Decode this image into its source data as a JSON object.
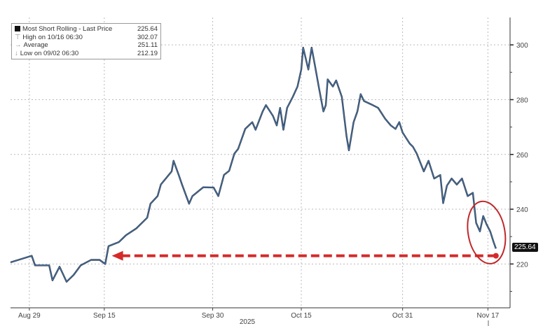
{
  "chart_data": {
    "type": "line",
    "title": "",
    "series": [
      {
        "name": "Most Short Rolling - Last Price",
        "color": "#3f6fa8",
        "points": [
          [
            0,
            220.6
          ],
          [
            4.5,
            223
          ],
          [
            5.2,
            219.5
          ],
          [
            8.2,
            219.5
          ],
          [
            8.9,
            214
          ],
          [
            10.4,
            219
          ],
          [
            11.9,
            213.5
          ],
          [
            13.4,
            216
          ],
          [
            14.9,
            219.5
          ],
          [
            17.1,
            221.5
          ],
          [
            18.9,
            221.5
          ],
          [
            20.1,
            220
          ],
          [
            20.8,
            226.5
          ],
          [
            23,
            228
          ],
          [
            24.5,
            230.5
          ],
          [
            26.7,
            233
          ],
          [
            29,
            236.9
          ],
          [
            29.7,
            242
          ],
          [
            31.2,
            244.8
          ],
          [
            31.9,
            249
          ],
          [
            34.2,
            253.8
          ],
          [
            34.6,
            257.7
          ],
          [
            35.7,
            252.5
          ],
          [
            36.4,
            249
          ],
          [
            37.9,
            242
          ],
          [
            38.6,
            244.8
          ],
          [
            40.9,
            248
          ],
          [
            43.1,
            247.9
          ],
          [
            44.1,
            244.8
          ],
          [
            45.3,
            252.5
          ],
          [
            46.4,
            254
          ],
          [
            47.5,
            260.3
          ],
          [
            48.3,
            262
          ],
          [
            49.8,
            269.3
          ],
          [
            51.3,
            271.8
          ],
          [
            52,
            269
          ],
          [
            53.5,
            275.7
          ],
          [
            54.2,
            278
          ],
          [
            55.7,
            274
          ],
          [
            56.5,
            270.6
          ],
          [
            57.2,
            277
          ],
          [
            57.9,
            269
          ],
          [
            58.7,
            277
          ],
          [
            59.9,
            281
          ],
          [
            60.9,
            284.8
          ],
          [
            61.7,
            291
          ],
          [
            62.1,
            299
          ],
          [
            63.2,
            291
          ],
          [
            63.9,
            299
          ],
          [
            64.6,
            292.5
          ],
          [
            65.4,
            284.8
          ],
          [
            66.4,
            275.7
          ],
          [
            66.9,
            278
          ],
          [
            67.3,
            287.4
          ],
          [
            68.4,
            284.8
          ],
          [
            69.1,
            287
          ],
          [
            70.3,
            281
          ],
          [
            71.3,
            266.7
          ],
          [
            71.8,
            261.5
          ],
          [
            72.8,
            271.8
          ],
          [
            73.6,
            275.7
          ],
          [
            74.3,
            282
          ],
          [
            75,
            279.5
          ],
          [
            76.5,
            278.3
          ],
          [
            78,
            277
          ],
          [
            79.5,
            273
          ],
          [
            80.7,
            270.6
          ],
          [
            81.7,
            269.3
          ],
          [
            82.5,
            271.8
          ],
          [
            83.2,
            268
          ],
          [
            84.7,
            264
          ],
          [
            85.4,
            262.8
          ],
          [
            86.2,
            260.3
          ],
          [
            87.7,
            253.8
          ],
          [
            88.7,
            257.7
          ],
          [
            89.9,
            251.2
          ],
          [
            91.2,
            252.5
          ],
          [
            91.8,
            242.2
          ],
          [
            92.6,
            248.6
          ],
          [
            93.6,
            251.2
          ],
          [
            94.7,
            249
          ],
          [
            95.8,
            251.2
          ],
          [
            97,
            244.8
          ],
          [
            98.1,
            246
          ],
          [
            98.8,
            235
          ],
          [
            99.6,
            231.9
          ],
          [
            100.3,
            237.5
          ],
          [
            101,
            234.5
          ],
          [
            101.8,
            231.9
          ],
          [
            102.5,
            228
          ],
          [
            103,
            225.64
          ]
        ]
      }
    ],
    "legend": {
      "placement": "top-left",
      "entries": [
        {
          "label": "Most Short Rolling - Last Price",
          "value": "225.64"
        },
        {
          "label": "High on 10/16 06:30",
          "value": "302.07"
        },
        {
          "label": "Average",
          "value": "251.11"
        },
        {
          "label": "Low on 09/02 06:30",
          "value": "212.19"
        }
      ]
    },
    "xlim": [
      0,
      106
    ],
    "ylim": [
      204,
      310
    ],
    "x_ticks": [
      {
        "t": 4,
        "label": "Aug 29"
      },
      {
        "t": 19.9,
        "label": "Sep 15"
      },
      {
        "t": 42.9,
        "label": "Sep 30"
      },
      {
        "t": 61.7,
        "label": "Oct 15"
      },
      {
        "t": 83.2,
        "label": "Oct 31"
      },
      {
        "t": 101.3,
        "label": "Nov 17"
      }
    ],
    "xlabel": "2025",
    "y_ticks": [
      220,
      240,
      260,
      280,
      300
    ],
    "y_minor": [
      210,
      230,
      250,
      270,
      290
    ],
    "grid": true,
    "last_price_tag": "225.64",
    "annotations": {
      "arrow": {
        "from_t": 103,
        "to_t": 21.5,
        "value": 223,
        "color": "#d42a2a"
      },
      "ellipse": {
        "t_range": [
          98,
          104
        ],
        "value_range": [
          220,
          243
        ],
        "color": "#c0282a"
      }
    }
  }
}
